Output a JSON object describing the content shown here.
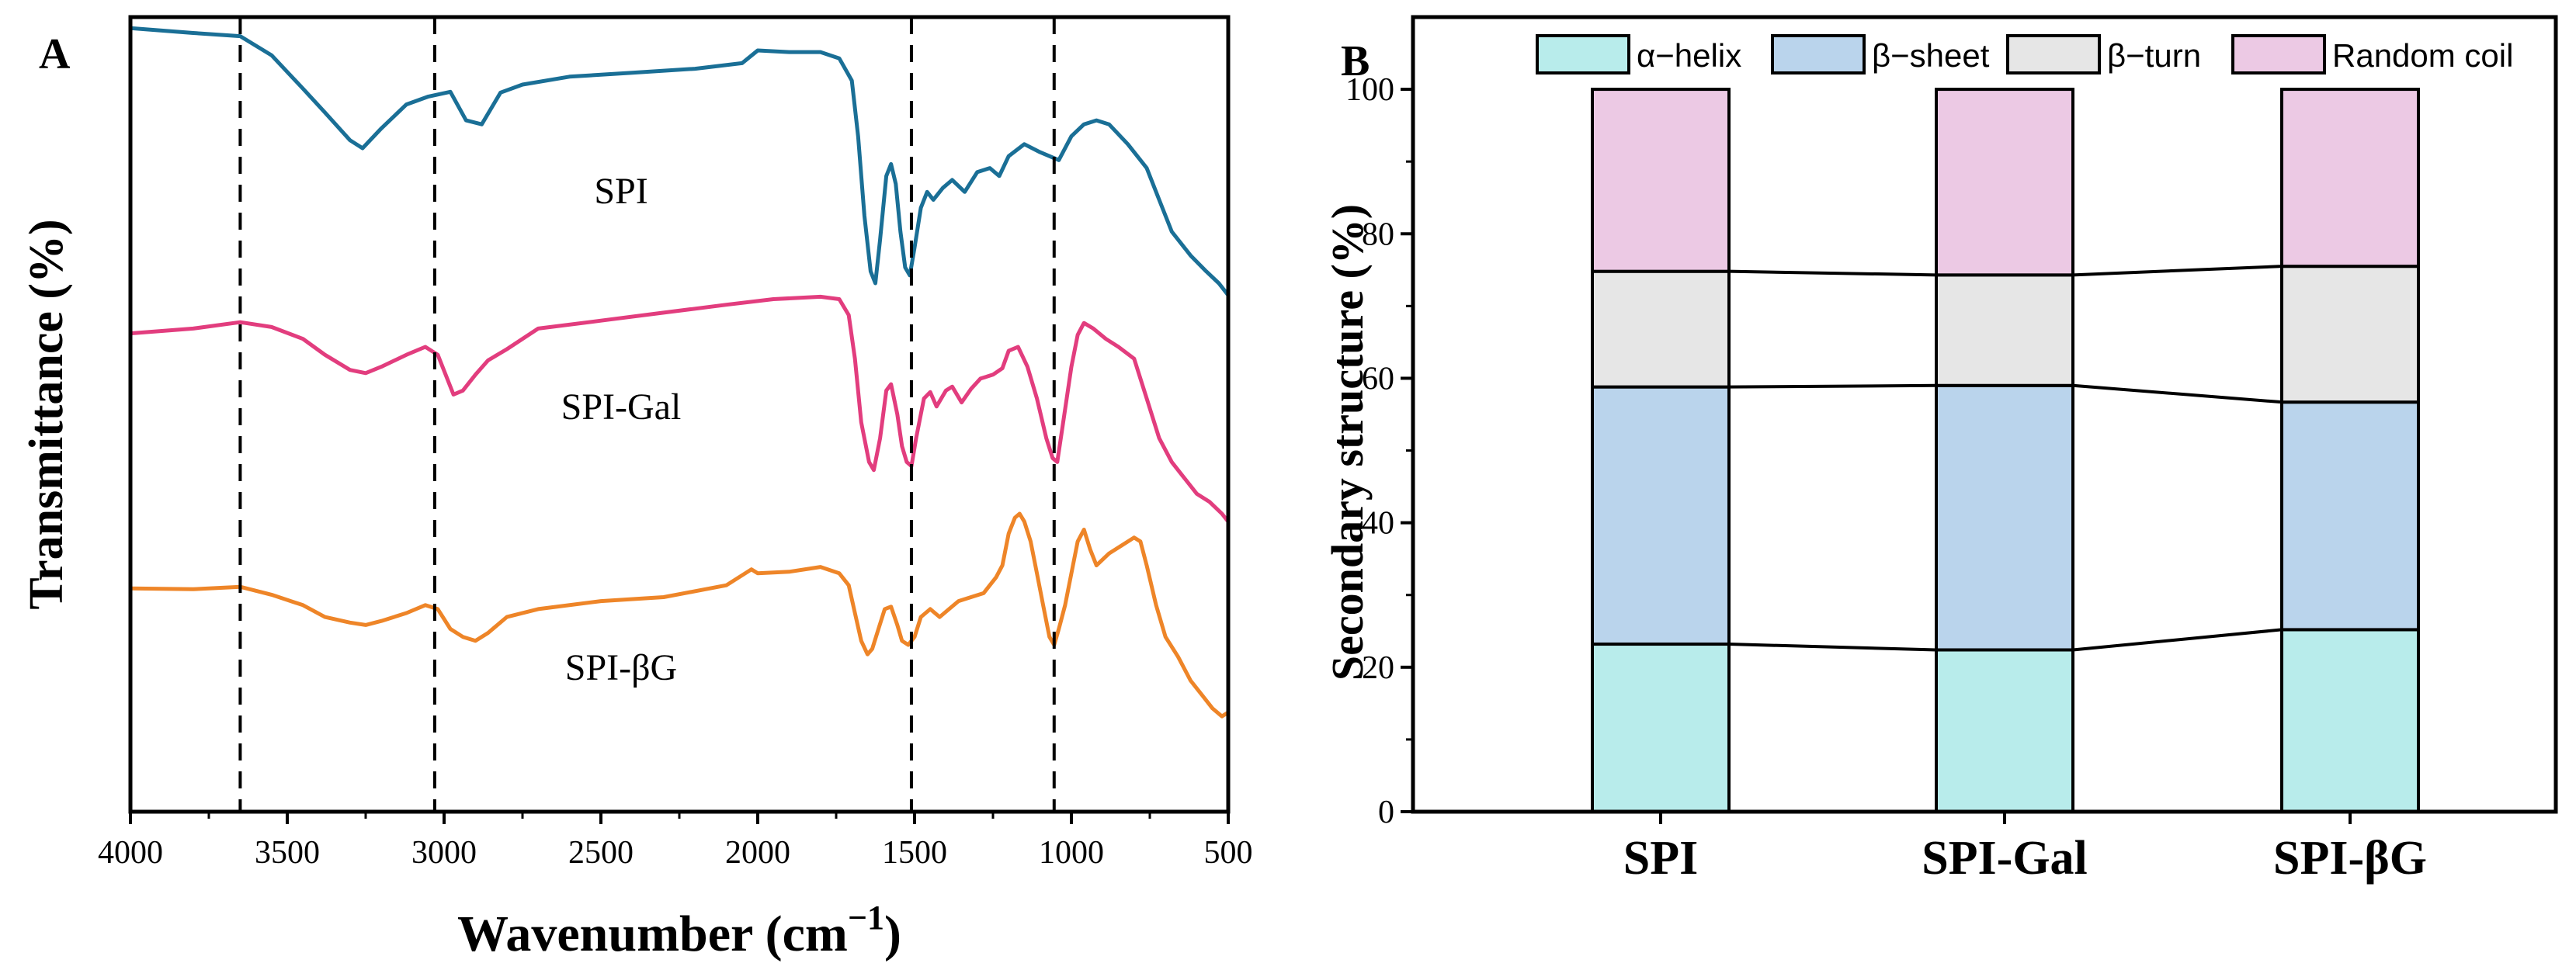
{
  "chart_data": [
    {
      "panel_label": "A",
      "type": "line",
      "xlabel": "Wavenumber (cm",
      "xlabel_sup": "−1",
      "xlabel_close": ")",
      "ylabel": "Transmittance (%)",
      "xlim": [
        4000,
        500
      ],
      "x_ticks": [
        "4000",
        "3500",
        "3000",
        "2500",
        "2000",
        "1500",
        "1000",
        "500"
      ],
      "x_tick_values": [
        4000,
        3500,
        3000,
        2500,
        2000,
        1500,
        1000,
        500
      ],
      "reference_lines_x": [
        3650,
        3030,
        1510,
        1055
      ],
      "series": [
        {
          "name": "SPI",
          "color": "#1a6f96",
          "points": [
            [
              4000,
              98.6
            ],
            [
              3800,
              98.0
            ],
            [
              3650,
              97.6
            ],
            [
              3550,
              95.2
            ],
            [
              3450,
              91.0
            ],
            [
              3380,
              88.0
            ],
            [
              3300,
              84.5
            ],
            [
              3260,
              83.5
            ],
            [
              3200,
              86.0
            ],
            [
              3120,
              89.0
            ],
            [
              3050,
              90.0
            ],
            [
              2980,
              90.6
            ],
            [
              2930,
              87.0
            ],
            [
              2880,
              86.5
            ],
            [
              2820,
              90.5
            ],
            [
              2750,
              91.5
            ],
            [
              2600,
              92.5
            ],
            [
              2400,
              93.0
            ],
            [
              2200,
              93.5
            ],
            [
              2050,
              94.2
            ],
            [
              2000,
              95.8
            ],
            [
              1900,
              95.6
            ],
            [
              1800,
              95.6
            ],
            [
              1740,
              94.8
            ],
            [
              1700,
              92.0
            ],
            [
              1680,
              85.0
            ],
            [
              1660,
              75.0
            ],
            [
              1640,
              68.0
            ],
            [
              1625,
              66.5
            ],
            [
              1610,
              72.0
            ],
            [
              1590,
              80.0
            ],
            [
              1575,
              81.5
            ],
            [
              1560,
              79.0
            ],
            [
              1545,
              73.0
            ],
            [
              1530,
              68.5
            ],
            [
              1515,
              67.5
            ],
            [
              1500,
              71.0
            ],
            [
              1480,
              76.0
            ],
            [
              1460,
              78.0
            ],
            [
              1440,
              77.0
            ],
            [
              1410,
              78.5
            ],
            [
              1380,
              79.5
            ],
            [
              1340,
              78.0
            ],
            [
              1300,
              80.5
            ],
            [
              1260,
              81.0
            ],
            [
              1230,
              80.0
            ],
            [
              1200,
              82.5
            ],
            [
              1150,
              84.0
            ],
            [
              1100,
              83.0
            ],
            [
              1070,
              82.5
            ],
            [
              1040,
              82.0
            ],
            [
              1000,
              85.0
            ],
            [
              960,
              86.5
            ],
            [
              920,
              87.0
            ],
            [
              880,
              86.5
            ],
            [
              820,
              84.0
            ],
            [
              760,
              81.0
            ],
            [
              720,
              77.0
            ],
            [
              680,
              73.0
            ],
            [
              620,
              70.0
            ],
            [
              570,
              68.0
            ],
            [
              530,
              66.5
            ],
            [
              500,
              65.0
            ]
          ]
        },
        {
          "name": "SPI-Gal",
          "color": "#e23d7e",
          "points": [
            [
              4000,
              60.2
            ],
            [
              3800,
              60.8
            ],
            [
              3650,
              61.6
            ],
            [
              3550,
              61.0
            ],
            [
              3450,
              59.5
            ],
            [
              3380,
              57.5
            ],
            [
              3300,
              55.6
            ],
            [
              3250,
              55.2
            ],
            [
              3200,
              56.0
            ],
            [
              3120,
              57.5
            ],
            [
              3060,
              58.5
            ],
            [
              3020,
              57.5
            ],
            [
              2970,
              52.5
            ],
            [
              2940,
              53.0
            ],
            [
              2900,
              55.0
            ],
            [
              2860,
              56.8
            ],
            [
              2800,
              58.2
            ],
            [
              2700,
              60.8
            ],
            [
              2500,
              61.8
            ],
            [
              2300,
              62.8
            ],
            [
              2100,
              63.8
            ],
            [
              1950,
              64.5
            ],
            [
              1800,
              64.8
            ],
            [
              1740,
              64.5
            ],
            [
              1710,
              62.5
            ],
            [
              1690,
              57.0
            ],
            [
              1670,
              49.0
            ],
            [
              1645,
              44.0
            ],
            [
              1630,
              43.0
            ],
            [
              1610,
              47.0
            ],
            [
              1590,
              53.0
            ],
            [
              1575,
              53.8
            ],
            [
              1555,
              50.0
            ],
            [
              1540,
              46.0
            ],
            [
              1525,
              44.0
            ],
            [
              1510,
              43.5
            ],
            [
              1495,
              47.0
            ],
            [
              1470,
              52.0
            ],
            [
              1450,
              52.8
            ],
            [
              1430,
              51.0
            ],
            [
              1400,
              53.0
            ],
            [
              1380,
              53.5
            ],
            [
              1350,
              51.5
            ],
            [
              1320,
              53.2
            ],
            [
              1290,
              54.5
            ],
            [
              1250,
              55.0
            ],
            [
              1220,
              55.8
            ],
            [
              1200,
              58.0
            ],
            [
              1170,
              58.5
            ],
            [
              1140,
              56.0
            ],
            [
              1110,
              52.0
            ],
            [
              1080,
              47.0
            ],
            [
              1060,
              44.5
            ],
            [
              1045,
              44.0
            ],
            [
              1030,
              48.0
            ],
            [
              1000,
              56.0
            ],
            [
              980,
              60.0
            ],
            [
              960,
              61.5
            ],
            [
              930,
              60.8
            ],
            [
              890,
              59.5
            ],
            [
              850,
              58.5
            ],
            [
              800,
              57.0
            ],
            [
              760,
              52.0
            ],
            [
              720,
              47.0
            ],
            [
              680,
              44.0
            ],
            [
              640,
              42.0
            ],
            [
              600,
              40.0
            ],
            [
              560,
              39.0
            ],
            [
              520,
              37.5
            ],
            [
              500,
              36.5
            ]
          ]
        },
        {
          "name": "SPI-βG",
          "color": "#ee8528",
          "points": [
            [
              4000,
              28.1
            ],
            [
              3800,
              28.0
            ],
            [
              3650,
              28.3
            ],
            [
              3550,
              27.3
            ],
            [
              3450,
              26.0
            ],
            [
              3380,
              24.5
            ],
            [
              3300,
              23.8
            ],
            [
              3250,
              23.5
            ],
            [
              3200,
              24.0
            ],
            [
              3120,
              25.0
            ],
            [
              3060,
              26.0
            ],
            [
              3020,
              25.5
            ],
            [
              2980,
              23.0
            ],
            [
              2940,
              22.0
            ],
            [
              2900,
              21.5
            ],
            [
              2860,
              22.5
            ],
            [
              2800,
              24.5
            ],
            [
              2700,
              25.5
            ],
            [
              2500,
              26.5
            ],
            [
              2300,
              27.0
            ],
            [
              2100,
              28.5
            ],
            [
              2020,
              30.5
            ],
            [
              2000,
              30.0
            ],
            [
              1900,
              30.2
            ],
            [
              1800,
              30.8
            ],
            [
              1740,
              30.0
            ],
            [
              1710,
              28.5
            ],
            [
              1690,
              25.0
            ],
            [
              1670,
              21.5
            ],
            [
              1650,
              19.8
            ],
            [
              1635,
              20.5
            ],
            [
              1615,
              23.0
            ],
            [
              1595,
              25.5
            ],
            [
              1575,
              25.8
            ],
            [
              1555,
              23.5
            ],
            [
              1540,
              21.5
            ],
            [
              1520,
              21.0
            ],
            [
              1500,
              22.0
            ],
            [
              1480,
              24.5
            ],
            [
              1450,
              25.5
            ],
            [
              1420,
              24.5
            ],
            [
              1390,
              25.5
            ],
            [
              1360,
              26.5
            ],
            [
              1320,
              27.0
            ],
            [
              1280,
              27.5
            ],
            [
              1240,
              29.5
            ],
            [
              1220,
              31.0
            ],
            [
              1200,
              35.0
            ],
            [
              1180,
              37.0
            ],
            [
              1165,
              37.5
            ],
            [
              1150,
              36.5
            ],
            [
              1130,
              34.0
            ],
            [
              1110,
              30.0
            ],
            [
              1090,
              26.0
            ],
            [
              1070,
              22.0
            ],
            [
              1055,
              21.0
            ],
            [
              1040,
              23.0
            ],
            [
              1020,
              26.0
            ],
            [
              1000,
              30.0
            ],
            [
              980,
              34.0
            ],
            [
              960,
              35.5
            ],
            [
              940,
              33.0
            ],
            [
              920,
              31.0
            ],
            [
              880,
              32.5
            ],
            [
              840,
              33.5
            ],
            [
              800,
              34.5
            ],
            [
              780,
              34.0
            ],
            [
              760,
              31.0
            ],
            [
              730,
              26.0
            ],
            [
              700,
              22.0
            ],
            [
              660,
              19.5
            ],
            [
              620,
              16.5
            ],
            [
              580,
              14.5
            ],
            [
              550,
              13.0
            ],
            [
              520,
              12.0
            ],
            [
              500,
              12.5
            ]
          ]
        }
      ]
    },
    {
      "panel_label": "B",
      "type": "bar",
      "stacked": true,
      "ylabel": "Secondary structure (%)",
      "ylim": [
        0,
        110
      ],
      "y_ticks": [
        0,
        20,
        40,
        60,
        80,
        100
      ],
      "categories": [
        "SPI",
        "SPI-Gal",
        "SPI-βG"
      ],
      "legend_position": "top",
      "series": [
        {
          "name": "α−helix",
          "color": "#b8eceb",
          "values": [
            23.2,
            22.4,
            25.2
          ]
        },
        {
          "name": "β−sheet",
          "color": "#bad4ec",
          "values": [
            35.6,
            36.6,
            31.5
          ]
        },
        {
          "name": "β−turn",
          "color": "#e6e6e6",
          "values": [
            16.0,
            15.3,
            18.8
          ]
        },
        {
          "name": "Random coil",
          "color": "#ecc9e4",
          "values": [
            25.2,
            25.7,
            24.5
          ]
        }
      ]
    }
  ]
}
